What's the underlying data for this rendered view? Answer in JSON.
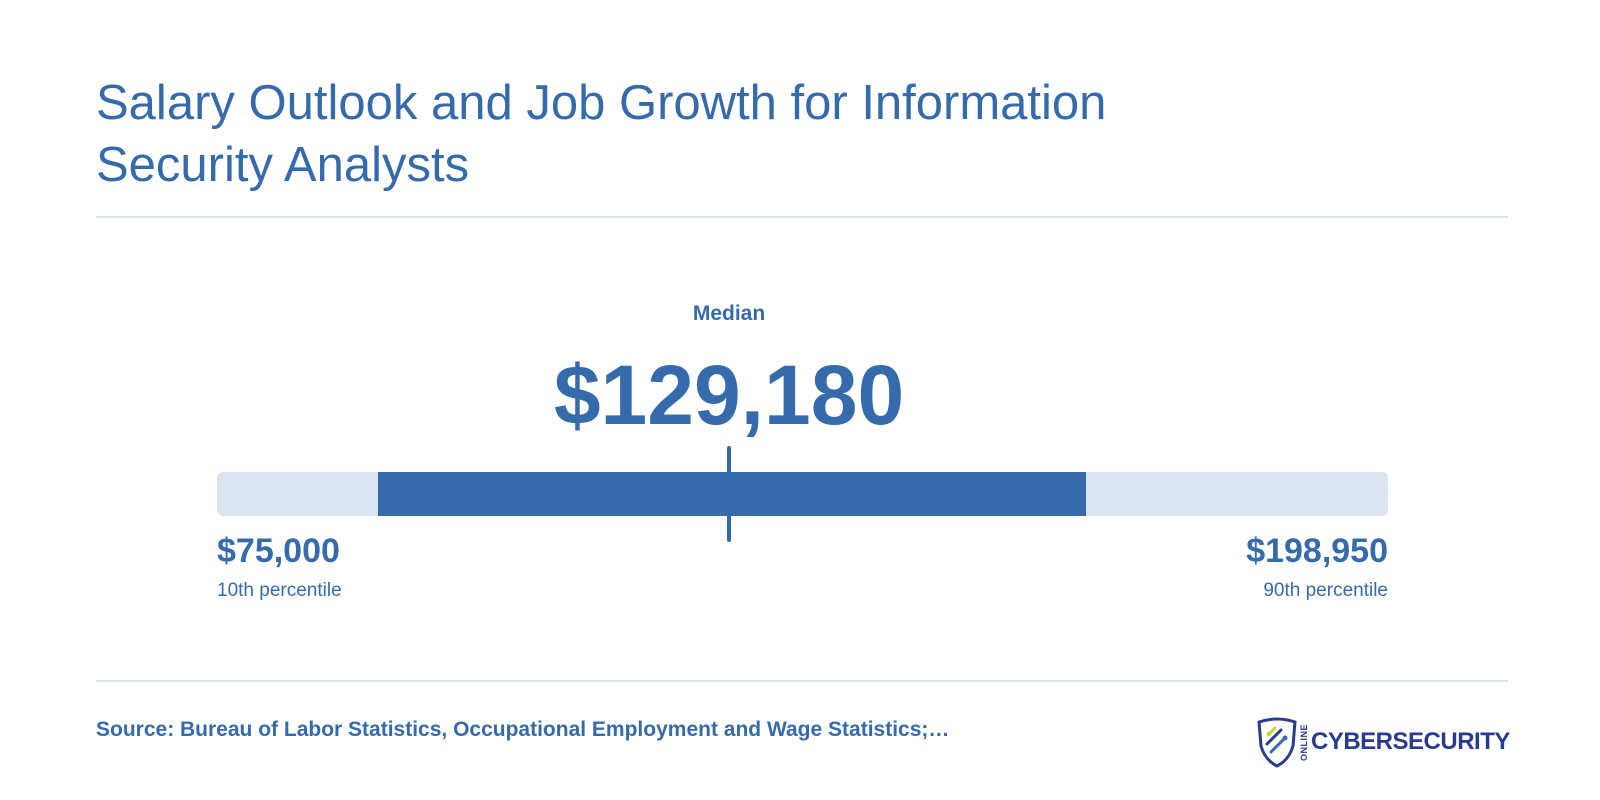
{
  "title": "Salary Outlook and Job Growth for Information Security Analysts",
  "chart_data": {
    "type": "range",
    "median_label": "Median",
    "median_value": 129180,
    "median_display": "$129,180",
    "low_value": 75000,
    "low_display": "$75,000",
    "low_label": "10th percentile",
    "high_value": 198950,
    "high_display": "$198,950",
    "high_label": "90th percentile",
    "highlight_range": [
      92000,
      167000
    ],
    "axis_range": [
      75000,
      198950
    ]
  },
  "footer": {
    "source": "Source: Bureau of Labor Statistics, Occupational Employment and Wage Statistics;…"
  },
  "logo": {
    "small_text": "ONLINE",
    "text": "CYBERSECURITY"
  },
  "colors": {
    "primary": "#356bab",
    "track": "#dbe5ef",
    "logo": "#2a3b8f",
    "logo_accent": "#c6d531"
  }
}
